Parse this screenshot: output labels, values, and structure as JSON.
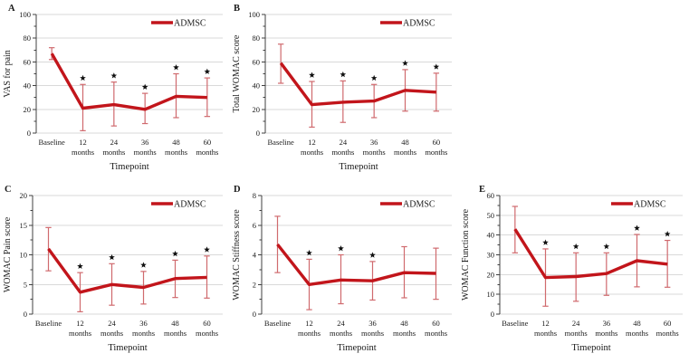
{
  "figure": {
    "background": "#ffffff",
    "xlabel": "Timepoint",
    "legend_label": "ADMSC",
    "colors": {
      "line": "#c2151b",
      "error_bar": "#d06a6e",
      "grid": "#d9d9d9",
      "axis": "#404040",
      "text": "#1a1a1a",
      "significance_marker": "#111111"
    }
  },
  "chart_data": [
    {
      "panel": "A",
      "type": "line",
      "title": "",
      "ylabel": "VAS for pain",
      "xlabel": "Timepoint",
      "legend": [
        "ADMSC"
      ],
      "legend_position": "top-right",
      "grid": true,
      "categories": [
        "Baseline",
        "12 months",
        "24 months",
        "36 months",
        "48 months",
        "60 months"
      ],
      "values": [
        67,
        21,
        24,
        20,
        31,
        30
      ],
      "err_low": [
        62,
        2,
        6,
        8,
        13,
        14
      ],
      "err_high": [
        72,
        41,
        43,
        33.5,
        50,
        46.5
      ],
      "significant": [
        false,
        true,
        true,
        true,
        true,
        true
      ],
      "ylim": [
        0,
        100
      ],
      "ytick_step": 20
    },
    {
      "panel": "B",
      "type": "line",
      "title": "",
      "ylabel": "Total WOMAC score",
      "xlabel": "Timepoint",
      "legend": [
        "ADMSC"
      ],
      "legend_position": "top-right",
      "grid": true,
      "categories": [
        "Baseline",
        "12 months",
        "24 months",
        "36 months",
        "48 months",
        "60 months"
      ],
      "values": [
        59,
        24,
        26,
        27,
        36,
        34.5
      ],
      "err_low": [
        42,
        5,
        9,
        13,
        18.5,
        18.5
      ],
      "err_high": [
        75,
        43.5,
        44,
        41,
        53.5,
        50.5
      ],
      "significant": [
        false,
        true,
        true,
        true,
        true,
        true
      ],
      "ylim": [
        0,
        100
      ],
      "ytick_step": 20
    },
    {
      "panel": "C",
      "type": "line",
      "title": "",
      "ylabel": "WOMAC Pain score",
      "xlabel": "Timepoint",
      "legend": [
        "ADMSC"
      ],
      "legend_position": "top-right",
      "grid": true,
      "categories": [
        "Baseline",
        "12 months",
        "24 months",
        "36 months",
        "48 months",
        "60 months"
      ],
      "values": [
        11,
        3.7,
        5,
        4.5,
        6,
        6.2
      ],
      "err_low": [
        7.3,
        0.4,
        1.5,
        1.7,
        2.8,
        2.7
      ],
      "err_high": [
        14.6,
        7,
        8.5,
        7.2,
        9.1,
        9.8
      ],
      "significant": [
        false,
        true,
        true,
        true,
        true,
        true
      ],
      "ylim": [
        0,
        20
      ],
      "ytick_step": 5
    },
    {
      "panel": "D",
      "type": "line",
      "title": "",
      "ylabel": "WOMAC Stiffness score",
      "xlabel": "Timepoint",
      "legend": [
        "ADMSC"
      ],
      "legend_position": "top-right",
      "grid": true,
      "categories": [
        "Baseline",
        "12 months",
        "24 months",
        "36 months",
        "48 months",
        "60 months"
      ],
      "values": [
        4.7,
        2,
        2.3,
        2.25,
        2.8,
        2.75
      ],
      "err_low": [
        2.8,
        0.3,
        0.7,
        0.95,
        1.1,
        1
      ],
      "err_high": [
        6.6,
        3.7,
        4,
        3.55,
        4.55,
        4.45
      ],
      "significant": [
        false,
        true,
        true,
        true,
        false,
        false
      ],
      "ylim": [
        0,
        8
      ],
      "ytick_step": 2
    },
    {
      "panel": "E",
      "type": "line",
      "title": "",
      "ylabel": "WOMAC Function score",
      "xlabel": "Timepoint",
      "legend": [
        "ADMSC"
      ],
      "legend_position": "top-right",
      "grid": true,
      "categories": [
        "Baseline",
        "12 months",
        "24 months",
        "36 months",
        "48 months",
        "60 months"
      ],
      "values": [
        43,
        18.5,
        19,
        20.5,
        27,
        25.3
      ],
      "err_low": [
        31,
        4,
        6.5,
        9.5,
        13.8,
        13.6
      ],
      "err_high": [
        54.5,
        33,
        31,
        31,
        40.3,
        37.3
      ],
      "significant": [
        false,
        true,
        true,
        true,
        true,
        true
      ],
      "ylim": [
        0,
        60
      ],
      "ytick_step": 10
    }
  ]
}
